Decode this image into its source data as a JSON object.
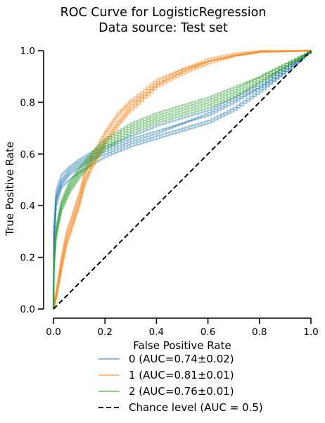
{
  "chart_data": {
    "type": "line",
    "title_lines": [
      "ROC Curve for LogisticRegression",
      "Data source: Test set"
    ],
    "xlabel": "False Positive Rate",
    "ylabel": "True Positive Rate",
    "xlim": [
      0,
      1
    ],
    "ylim": [
      0,
      1
    ],
    "xticks": [
      "0.0",
      "0.2",
      "0.4",
      "0.6",
      "0.8",
      "1.0"
    ],
    "yticks": [
      "0.0",
      "0.2",
      "0.4",
      "0.6",
      "0.8",
      "1.0"
    ],
    "grid": false,
    "legend_position": "below plot",
    "series": [
      {
        "name": "0 (AUC=0.74±0.02)",
        "color": "#1f77b4",
        "folds": [
          [
            [
              0,
              0
            ],
            [
              0.002,
              0.3
            ],
            [
              0.01,
              0.44
            ],
            [
              0.03,
              0.5
            ],
            [
              0.06,
              0.54
            ],
            [
              0.1,
              0.57
            ],
            [
              0.15,
              0.6
            ],
            [
              0.2,
              0.62
            ],
            [
              0.3,
              0.66
            ],
            [
              0.4,
              0.69
            ],
            [
              0.5,
              0.72
            ],
            [
              0.6,
              0.75
            ],
            [
              0.7,
              0.8
            ],
            [
              0.8,
              0.86
            ],
            [
              0.9,
              0.93
            ],
            [
              1,
              1
            ]
          ],
          [
            [
              0,
              0
            ],
            [
              0.002,
              0.28
            ],
            [
              0.01,
              0.42
            ],
            [
              0.03,
              0.48
            ],
            [
              0.06,
              0.52
            ],
            [
              0.1,
              0.55
            ],
            [
              0.15,
              0.58
            ],
            [
              0.2,
              0.6
            ],
            [
              0.3,
              0.64
            ],
            [
              0.4,
              0.67
            ],
            [
              0.5,
              0.7
            ],
            [
              0.6,
              0.73
            ],
            [
              0.7,
              0.78
            ],
            [
              0.8,
              0.85
            ],
            [
              0.9,
              0.92
            ],
            [
              1,
              1
            ]
          ],
          [
            [
              0,
              0
            ],
            [
              0.002,
              0.32
            ],
            [
              0.01,
              0.46
            ],
            [
              0.03,
              0.52
            ],
            [
              0.06,
              0.55
            ],
            [
              0.1,
              0.58
            ],
            [
              0.15,
              0.61
            ],
            [
              0.2,
              0.63
            ],
            [
              0.3,
              0.67
            ],
            [
              0.4,
              0.71
            ],
            [
              0.5,
              0.74
            ],
            [
              0.6,
              0.77
            ],
            [
              0.7,
              0.82
            ],
            [
              0.8,
              0.87
            ],
            [
              0.9,
              0.94
            ],
            [
              1,
              1
            ]
          ],
          [
            [
              0,
              0
            ],
            [
              0.002,
              0.27
            ],
            [
              0.01,
              0.4
            ],
            [
              0.03,
              0.47
            ],
            [
              0.06,
              0.5
            ],
            [
              0.1,
              0.53
            ],
            [
              0.15,
              0.56
            ],
            [
              0.2,
              0.59
            ],
            [
              0.3,
              0.63
            ],
            [
              0.4,
              0.66
            ],
            [
              0.5,
              0.69
            ],
            [
              0.6,
              0.72
            ],
            [
              0.7,
              0.77
            ],
            [
              0.8,
              0.84
            ],
            [
              0.9,
              0.92
            ],
            [
              1,
              1
            ]
          ],
          [
            [
              0,
              0
            ],
            [
              0.002,
              0.3
            ],
            [
              0.01,
              0.43
            ],
            [
              0.03,
              0.49
            ],
            [
              0.06,
              0.53
            ],
            [
              0.1,
              0.56
            ],
            [
              0.15,
              0.59
            ],
            [
              0.2,
              0.61
            ],
            [
              0.3,
              0.65
            ],
            [
              0.4,
              0.68
            ],
            [
              0.5,
              0.72
            ],
            [
              0.6,
              0.76
            ],
            [
              0.7,
              0.81
            ],
            [
              0.8,
              0.86
            ],
            [
              0.9,
              0.93
            ],
            [
              1,
              1
            ]
          ]
        ]
      },
      {
        "name": "1 (AUC=0.81±0.01)",
        "color": "#ff7f0e",
        "folds": [
          [
            [
              0,
              0
            ],
            [
              0.01,
              0.05
            ],
            [
              0.03,
              0.17
            ],
            [
              0.05,
              0.27
            ],
            [
              0.08,
              0.36
            ],
            [
              0.1,
              0.42
            ],
            [
              0.12,
              0.5
            ],
            [
              0.15,
              0.57
            ],
            [
              0.2,
              0.66
            ],
            [
              0.25,
              0.73
            ],
            [
              0.3,
              0.79
            ],
            [
              0.4,
              0.87
            ],
            [
              0.5,
              0.92
            ],
            [
              0.6,
              0.96
            ],
            [
              0.7,
              0.98
            ],
            [
              0.8,
              0.995
            ],
            [
              1,
              1
            ]
          ],
          [
            [
              0,
              0
            ],
            [
              0.01,
              0.04
            ],
            [
              0.03,
              0.15
            ],
            [
              0.05,
              0.25
            ],
            [
              0.08,
              0.34
            ],
            [
              0.1,
              0.4
            ],
            [
              0.12,
              0.48
            ],
            [
              0.15,
              0.55
            ],
            [
              0.2,
              0.64
            ],
            [
              0.25,
              0.71
            ],
            [
              0.3,
              0.77
            ],
            [
              0.4,
              0.86
            ],
            [
              0.5,
              0.91
            ],
            [
              0.6,
              0.95
            ],
            [
              0.7,
              0.98
            ],
            [
              0.8,
              0.995
            ],
            [
              1,
              1
            ]
          ],
          [
            [
              0,
              0
            ],
            [
              0.01,
              0.06
            ],
            [
              0.03,
              0.19
            ],
            [
              0.05,
              0.29
            ],
            [
              0.08,
              0.38
            ],
            [
              0.1,
              0.44
            ],
            [
              0.12,
              0.52
            ],
            [
              0.15,
              0.59
            ],
            [
              0.2,
              0.68
            ],
            [
              0.25,
              0.75
            ],
            [
              0.3,
              0.8
            ],
            [
              0.4,
              0.88
            ],
            [
              0.5,
              0.93
            ],
            [
              0.6,
              0.96
            ],
            [
              0.7,
              0.985
            ],
            [
              0.8,
              0.998
            ],
            [
              1,
              1
            ]
          ],
          [
            [
              0,
              0
            ],
            [
              0.01,
              0.05
            ],
            [
              0.03,
              0.16
            ],
            [
              0.05,
              0.26
            ],
            [
              0.08,
              0.35
            ],
            [
              0.1,
              0.41
            ],
            [
              0.12,
              0.49
            ],
            [
              0.15,
              0.56
            ],
            [
              0.2,
              0.65
            ],
            [
              0.25,
              0.72
            ],
            [
              0.3,
              0.78
            ],
            [
              0.4,
              0.87
            ],
            [
              0.5,
              0.92
            ],
            [
              0.6,
              0.96
            ],
            [
              0.7,
              0.98
            ],
            [
              0.8,
              0.995
            ],
            [
              1,
              1
            ]
          ],
          [
            [
              0,
              0
            ],
            [
              0.01,
              0.07
            ],
            [
              0.03,
              0.2
            ],
            [
              0.05,
              0.3
            ],
            [
              0.08,
              0.39
            ],
            [
              0.1,
              0.45
            ],
            [
              0.12,
              0.53
            ],
            [
              0.15,
              0.6
            ],
            [
              0.2,
              0.69
            ],
            [
              0.25,
              0.76
            ],
            [
              0.3,
              0.81
            ],
            [
              0.4,
              0.89
            ],
            [
              0.5,
              0.93
            ],
            [
              0.6,
              0.97
            ],
            [
              0.7,
              0.99
            ],
            [
              0.8,
              1.0
            ],
            [
              1,
              1
            ]
          ]
        ]
      },
      {
        "name": "2 (AUC=0.76±0.01)",
        "color": "#2ca02c",
        "folds": [
          [
            [
              0,
              0
            ],
            [
              0.002,
              0.18
            ],
            [
              0.01,
              0.3
            ],
            [
              0.03,
              0.4
            ],
            [
              0.06,
              0.47
            ],
            [
              0.1,
              0.53
            ],
            [
              0.15,
              0.59
            ],
            [
              0.2,
              0.64
            ],
            [
              0.3,
              0.7
            ],
            [
              0.4,
              0.74
            ],
            [
              0.5,
              0.77
            ],
            [
              0.6,
              0.8
            ],
            [
              0.7,
              0.84
            ],
            [
              0.8,
              0.89
            ],
            [
              0.9,
              0.94
            ],
            [
              1,
              1
            ]
          ],
          [
            [
              0,
              0
            ],
            [
              0.002,
              0.16
            ],
            [
              0.01,
              0.28
            ],
            [
              0.03,
              0.38
            ],
            [
              0.06,
              0.45
            ],
            [
              0.1,
              0.51
            ],
            [
              0.15,
              0.57
            ],
            [
              0.2,
              0.62
            ],
            [
              0.3,
              0.68
            ],
            [
              0.4,
              0.72
            ],
            [
              0.5,
              0.75
            ],
            [
              0.6,
              0.78
            ],
            [
              0.7,
              0.82
            ],
            [
              0.8,
              0.88
            ],
            [
              0.9,
              0.94
            ],
            [
              1,
              1
            ]
          ],
          [
            [
              0,
              0
            ],
            [
              0.002,
              0.2
            ],
            [
              0.01,
              0.32
            ],
            [
              0.03,
              0.42
            ],
            [
              0.06,
              0.49
            ],
            [
              0.1,
              0.55
            ],
            [
              0.15,
              0.61
            ],
            [
              0.2,
              0.66
            ],
            [
              0.3,
              0.72
            ],
            [
              0.4,
              0.76
            ],
            [
              0.5,
              0.79
            ],
            [
              0.6,
              0.82
            ],
            [
              0.7,
              0.86
            ],
            [
              0.8,
              0.9
            ],
            [
              0.9,
              0.95
            ],
            [
              1,
              1
            ]
          ],
          [
            [
              0,
              0
            ],
            [
              0.002,
              0.17
            ],
            [
              0.01,
              0.29
            ],
            [
              0.03,
              0.39
            ],
            [
              0.06,
              0.46
            ],
            [
              0.1,
              0.52
            ],
            [
              0.15,
              0.58
            ],
            [
              0.2,
              0.63
            ],
            [
              0.3,
              0.69
            ],
            [
              0.4,
              0.73
            ],
            [
              0.5,
              0.76
            ],
            [
              0.6,
              0.79
            ],
            [
              0.7,
              0.83
            ],
            [
              0.8,
              0.88
            ],
            [
              0.9,
              0.94
            ],
            [
              1,
              1
            ]
          ],
          [
            [
              0,
              0
            ],
            [
              0.002,
              0.19
            ],
            [
              0.01,
              0.31
            ],
            [
              0.03,
              0.41
            ],
            [
              0.06,
              0.48
            ],
            [
              0.1,
              0.54
            ],
            [
              0.15,
              0.6
            ],
            [
              0.2,
              0.65
            ],
            [
              0.3,
              0.71
            ],
            [
              0.4,
              0.75
            ],
            [
              0.5,
              0.78
            ],
            [
              0.6,
              0.81
            ],
            [
              0.7,
              0.85
            ],
            [
              0.8,
              0.9
            ],
            [
              0.9,
              0.95
            ],
            [
              1,
              1
            ]
          ]
        ]
      }
    ],
    "chance_level": {
      "name": "Chance level (AUC = 0.5)",
      "color": "#000000",
      "points": [
        [
          0,
          0
        ],
        [
          1,
          1
        ]
      ]
    }
  }
}
